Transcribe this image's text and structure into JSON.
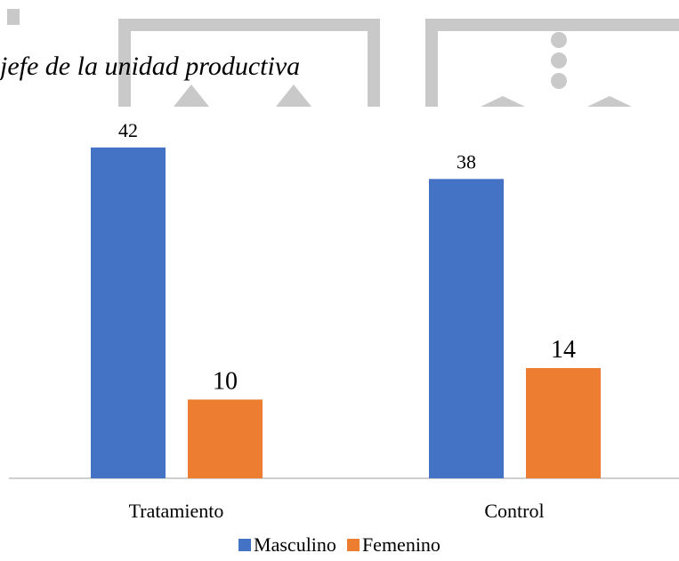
{
  "caption": "jefe de la unidad productiva",
  "colors": {
    "masculino": "#4472C4",
    "femenino": "#ED7D31",
    "axis": "#bfbfbf",
    "watermark": "#c9c9c9"
  },
  "chart_data": {
    "type": "bar",
    "categories": [
      "Tratamiento",
      "Control"
    ],
    "series": [
      {
        "name": "Masculino",
        "values": [
          42,
          38
        ],
        "color": "#4472C4"
      },
      {
        "name": "Femenino",
        "values": [
          10,
          14
        ],
        "color": "#ED7D31"
      }
    ],
    "title": "",
    "xlabel": "",
    "ylabel": "",
    "ylim": [
      0,
      45
    ],
    "grid": false,
    "legend": "bottom-center"
  }
}
